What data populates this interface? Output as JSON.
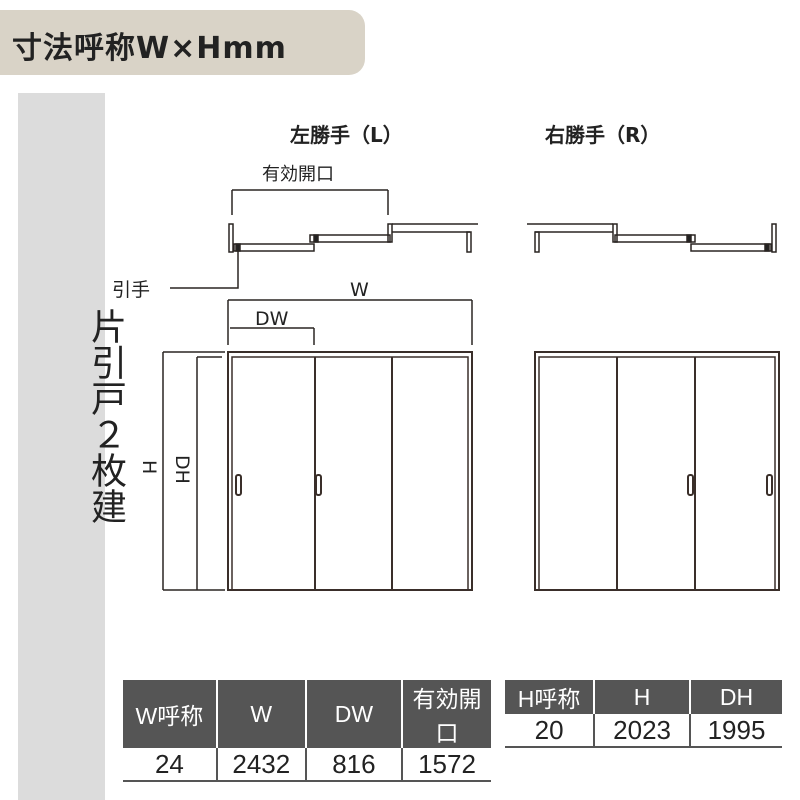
{
  "title": "寸法呼称W×Hmm",
  "side_label": "片引戸２枚建",
  "diagram": {
    "left_label": "左勝手（L）",
    "right_label": "右勝手（R）",
    "effective_opening": "有効開口",
    "handle": "引手",
    "w": "W",
    "dw": "DW",
    "h": "H",
    "dh": "DH"
  },
  "table_w": {
    "headers": [
      "W呼称",
      "W",
      "DW",
      "有効開口"
    ],
    "values": [
      "24",
      "2432",
      "816",
      "1572"
    ]
  },
  "table_h": {
    "headers": [
      "H呼称",
      "H",
      "DH"
    ],
    "values": [
      "20",
      "2023",
      "1995"
    ]
  },
  "colors": {
    "title_bg": "#d9d3c7",
    "side_bg": "#dcdcdc",
    "frame": "#3a2f2a",
    "table_header": "#555555"
  }
}
